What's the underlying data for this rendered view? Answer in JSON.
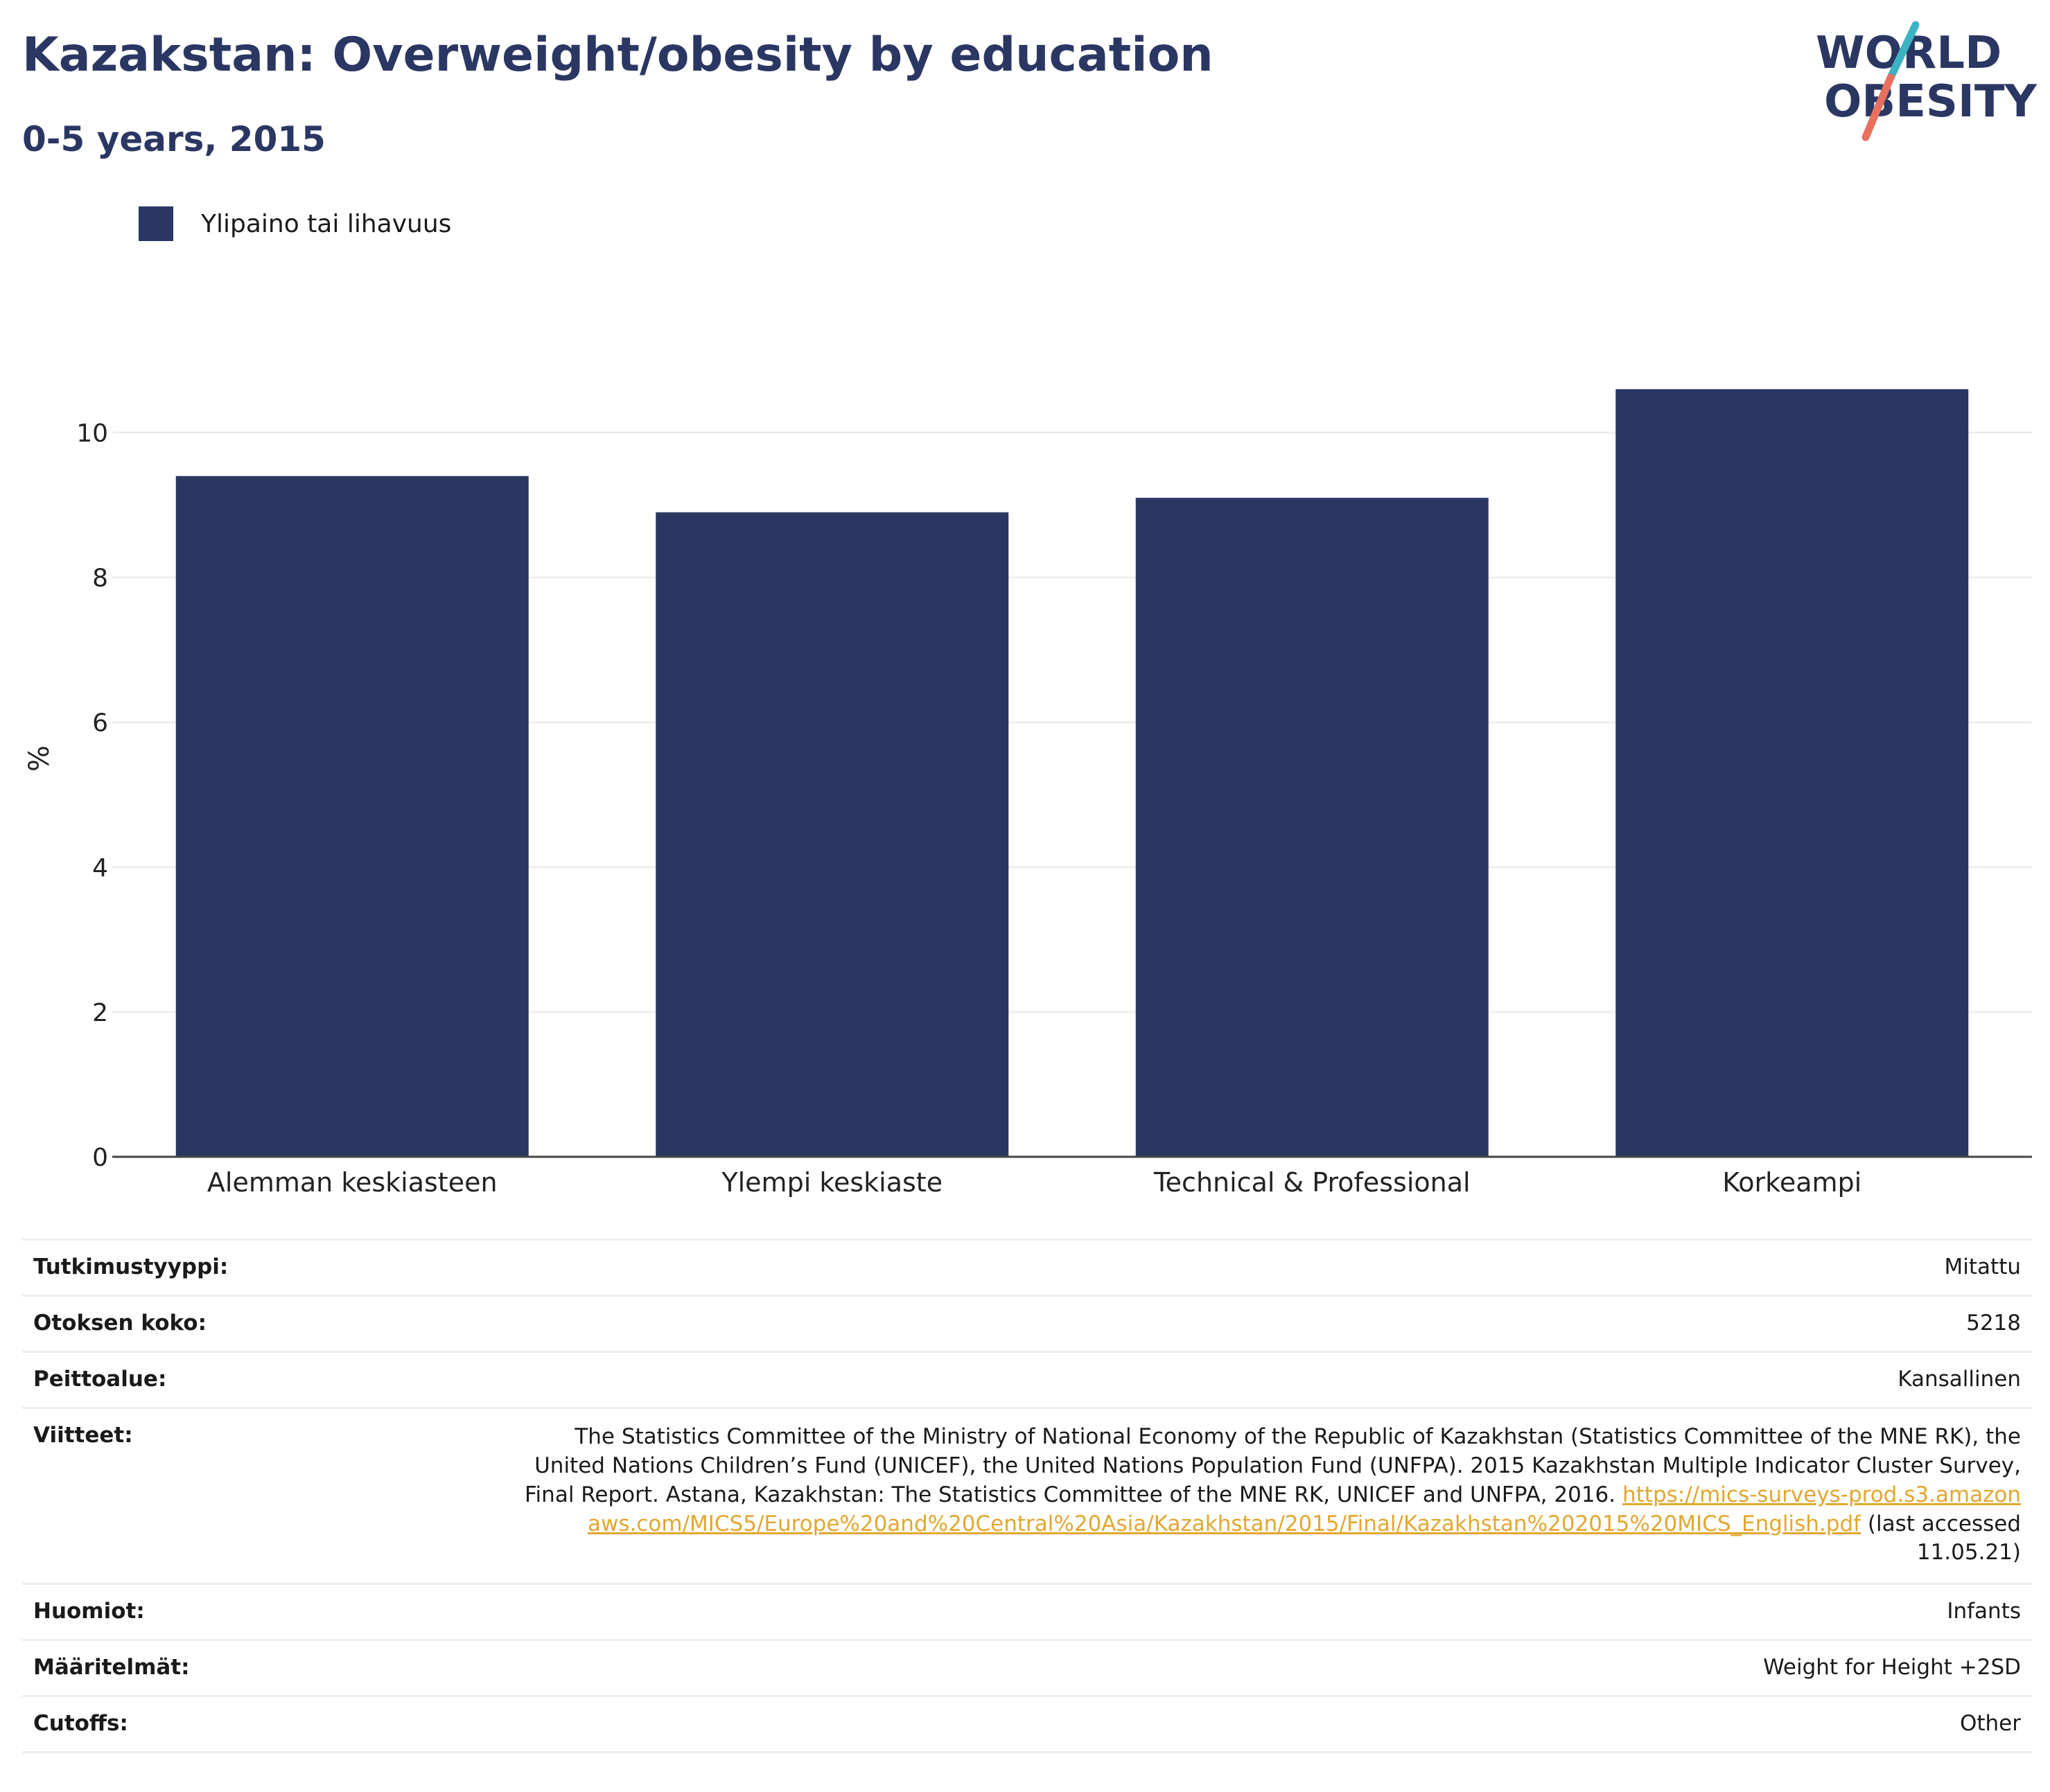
{
  "header": {
    "title": "Kazakstan: Overweight/obesity by education",
    "subtitle": "0-5 years, 2015",
    "logo_line1": "WORLD",
    "logo_line2": "OBESITY"
  },
  "colors": {
    "bar": "#2b3763",
    "title": "#2b3763",
    "link": "#e2a72e",
    "logo_teal": "#3bb3c3",
    "logo_coral": "#e8705f",
    "grid": "#eeeeee",
    "axis": "#444444"
  },
  "chart_data": {
    "type": "bar",
    "categories": [
      "Alemman keskiasteen",
      "Ylempi keskiaste",
      "Technical & Professional",
      "Korkeampi"
    ],
    "series": [
      {
        "name": "Ylipaino tai lihavuus",
        "values": [
          9.4,
          8.9,
          9.1,
          10.6
        ]
      }
    ],
    "ylabel": "%",
    "ylim": [
      0,
      11
    ],
    "yticks": [
      0,
      2,
      4,
      6,
      8,
      10
    ],
    "grid": true,
    "legend_position": "top-left"
  },
  "info": {
    "rows": [
      {
        "label": "Tutkimustyyppi:",
        "value": "Mitattu"
      },
      {
        "label": "Otoksen koko:",
        "value": "5218"
      },
      {
        "label": "Peittoalue:",
        "value": "Kansallinen"
      }
    ],
    "reference": {
      "label": "Viitteet:",
      "text": "The Statistics Committee of the Ministry of National Economy of the Republic of Kazakhstan (Statistics Committee of the MNE RK), the United Nations Children’s Fund (UNICEF), the United Nations Population Fund (UNFPA). 2015 Kazakhstan Multiple Indicator Cluster Survey, Final Report. Astana, Kazakhstan: The Statistics Committee of the MNE RK, UNICEF and UNFPA, 2016.",
      "link": "https://mics-surveys-prod.s3.amazonaws.com/MICS5/Europe%20and%20Central%20Asia/Kazakhstan/2015/Final/Kazakhstan%202015%20MICS_English.pdf",
      "suffix": "(last accessed 11.05.21)"
    },
    "rows_after": [
      {
        "label": "Huomiot:",
        "value": "Infants"
      },
      {
        "label": "Määritelmät:",
        "value": "Weight for Height +2SD"
      },
      {
        "label": "Cutoffs:",
        "value": "Other"
      }
    ]
  }
}
